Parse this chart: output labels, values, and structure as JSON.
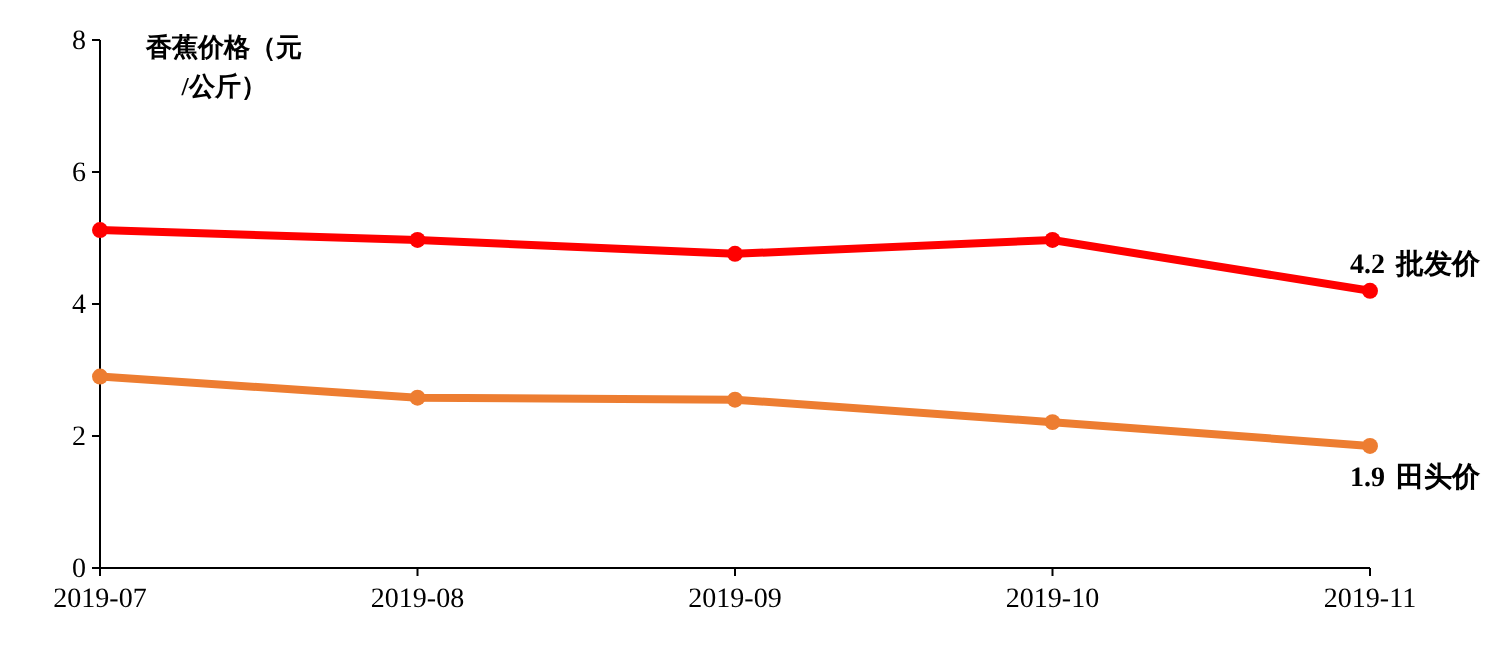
{
  "chart_data": {
    "type": "line",
    "ylabel": "香蕉价格（元/公斤）",
    "categories": [
      "2019-07",
      "2019-08",
      "2019-09",
      "2019-10",
      "2019-11"
    ],
    "ylim": [
      0,
      8
    ],
    "yticks": [
      0,
      2,
      4,
      6,
      8
    ],
    "grid": false,
    "legend": false,
    "marker": "circle",
    "line_style": "solid",
    "series": [
      {
        "name": "批发价",
        "color": "#ff0000",
        "values": [
          5.12,
          4.97,
          4.76,
          4.97,
          4.2
        ],
        "value_labels": [
          null,
          null,
          null,
          null,
          "4.2"
        ]
      },
      {
        "name": "田头价",
        "color": "#ed7d31",
        "values": [
          2.9,
          2.58,
          2.55,
          2.21,
          1.85
        ],
        "value_labels": [
          null,
          null,
          null,
          null,
          "1.9"
        ]
      }
    ]
  }
}
